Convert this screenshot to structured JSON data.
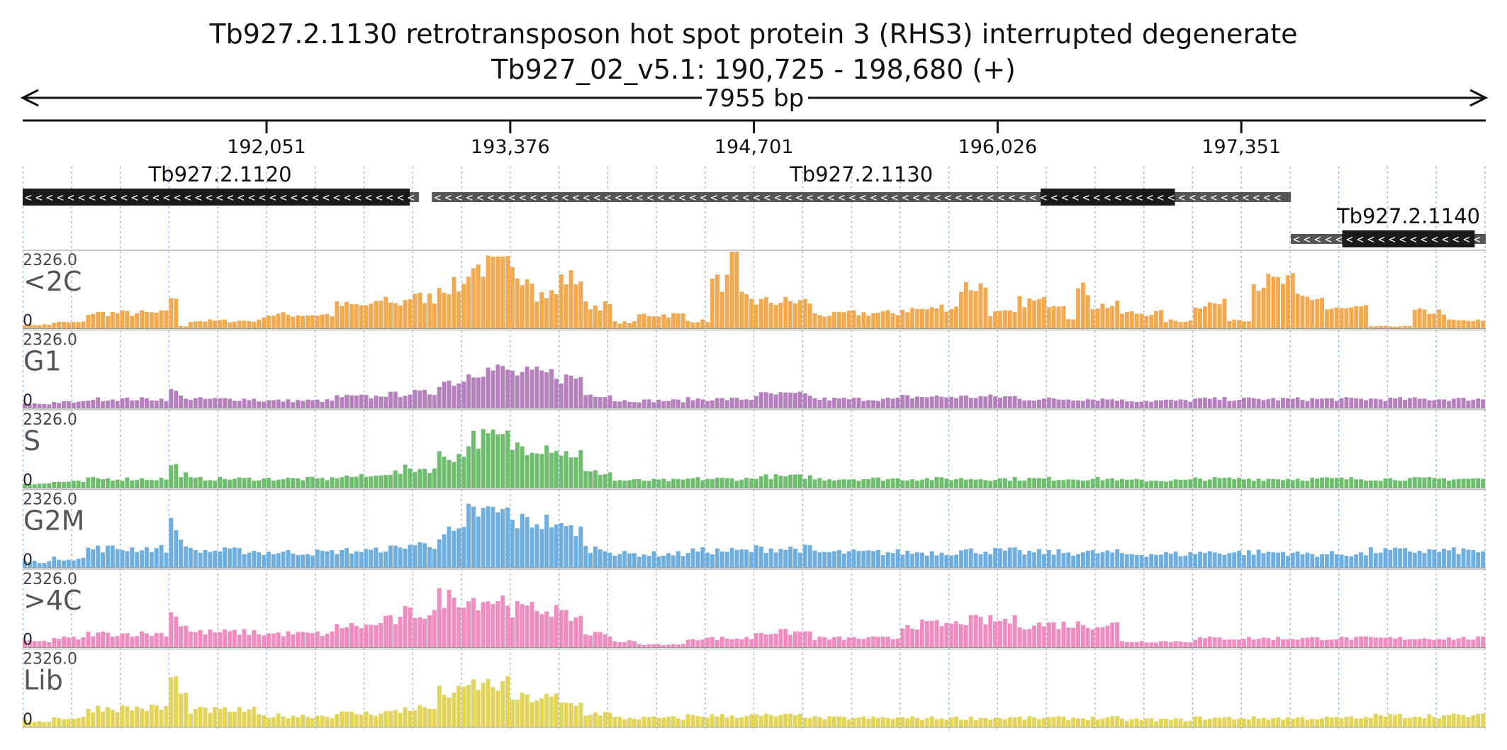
{
  "header": {
    "title": "Tb927.2.1130  retrotransposon hot spot protein 3 (RHS3)  interrupted  degenerate",
    "subtitle": "Tb927_02_v5.1: 190,725 - 198,680 (+)"
  },
  "chart_data": {
    "type": "genome-browser-coverage",
    "chromosome": "Tb927_02_v5.1",
    "region": {
      "start": 190725,
      "end": 198680,
      "strand": "+"
    },
    "length_label": "7955 bp",
    "ticks": [
      {
        "pos": 192051,
        "label": "192,051"
      },
      {
        "pos": 193376,
        "label": "193,376"
      },
      {
        "pos": 194701,
        "label": "194,701"
      },
      {
        "pos": 196026,
        "label": "196,026"
      },
      {
        "pos": 197351,
        "label": "197,351"
      }
    ],
    "genes": [
      {
        "name": "Tb927.2.1120",
        "strand": "-",
        "start": 190725,
        "end": 192880,
        "cds": [
          [
            190725,
            192830
          ]
        ],
        "row": 0
      },
      {
        "name": "Tb927.2.1130",
        "strand": "-",
        "start": 192950,
        "end": 197620,
        "cds": [
          [
            196260,
            196990
          ]
        ],
        "row": 0
      },
      {
        "name": "Tb927.2.1140",
        "strand": "-",
        "start": 197620,
        "end": 198680,
        "cds": [
          [
            197900,
            198620
          ]
        ],
        "row": 1
      }
    ],
    "y_max": 2326.0,
    "y_max_label": "2326.0",
    "y_min_label": "0",
    "bin_count": 300,
    "tracks": [
      {
        "name": "<2C",
        "color": "#f5a94e",
        "regions": [
          {
            "s": 0.0,
            "e": 0.02,
            "h": 0.05
          },
          {
            "s": 0.02,
            "e": 0.045,
            "h": 0.08
          },
          {
            "s": 0.045,
            "e": 0.1,
            "h": 0.2
          },
          {
            "s": 0.1,
            "e": 0.108,
            "h": 0.42
          },
          {
            "s": 0.108,
            "e": 0.112,
            "h": 0.03
          },
          {
            "s": 0.112,
            "e": 0.115,
            "h": 0.4
          },
          {
            "s": 0.115,
            "e": 0.16,
            "h": 0.1
          },
          {
            "s": 0.16,
            "e": 0.165,
            "h": 0.1
          },
          {
            "s": 0.165,
            "e": 0.215,
            "h": 0.18
          },
          {
            "s": 0.215,
            "e": 0.245,
            "h": 0.3
          },
          {
            "s": 0.245,
            "e": 0.252,
            "h": 0.38
          },
          {
            "s": 0.252,
            "e": 0.26,
            "h": 0.32
          },
          {
            "s": 0.26,
            "e": 0.282,
            "h": 0.4
          },
          {
            "s": 0.282,
            "e": 0.305,
            "h": 0.55
          },
          {
            "s": 0.305,
            "e": 0.335,
            "h": 0.8
          },
          {
            "s": 0.335,
            "e": 0.35,
            "h": 0.72
          },
          {
            "s": 0.35,
            "e": 0.368,
            "h": 0.45
          },
          {
            "s": 0.368,
            "e": 0.385,
            "h": 0.65
          },
          {
            "s": 0.385,
            "e": 0.405,
            "h": 0.3
          },
          {
            "s": 0.405,
            "e": 0.42,
            "h": 0.08
          },
          {
            "s": 0.42,
            "e": 0.455,
            "h": 0.18
          },
          {
            "s": 0.455,
            "e": 0.47,
            "h": 0.1
          },
          {
            "s": 0.47,
            "e": 0.485,
            "h": 0.6
          },
          {
            "s": 0.485,
            "e": 0.489,
            "h": 1.0
          },
          {
            "s": 0.489,
            "e": 0.5,
            "h": 0.4
          },
          {
            "s": 0.5,
            "e": 0.54,
            "h": 0.35
          },
          {
            "s": 0.54,
            "e": 0.56,
            "h": 0.18
          },
          {
            "s": 0.56,
            "e": 0.6,
            "h": 0.2
          },
          {
            "s": 0.6,
            "e": 0.625,
            "h": 0.25
          },
          {
            "s": 0.625,
            "e": 0.64,
            "h": 0.28
          },
          {
            "s": 0.64,
            "e": 0.66,
            "h": 0.55
          },
          {
            "s": 0.66,
            "e": 0.68,
            "h": 0.2
          },
          {
            "s": 0.68,
            "e": 0.715,
            "h": 0.35
          },
          {
            "s": 0.715,
            "e": 0.72,
            "h": 0.15
          },
          {
            "s": 0.72,
            "e": 0.73,
            "h": 0.5
          },
          {
            "s": 0.73,
            "e": 0.75,
            "h": 0.3
          },
          {
            "s": 0.75,
            "e": 0.78,
            "h": 0.2
          },
          {
            "s": 0.78,
            "e": 0.8,
            "h": 0.1
          },
          {
            "s": 0.8,
            "e": 0.825,
            "h": 0.32
          },
          {
            "s": 0.825,
            "e": 0.84,
            "h": 0.12
          },
          {
            "s": 0.84,
            "e": 0.87,
            "h": 0.6
          },
          {
            "s": 0.87,
            "e": 0.89,
            "h": 0.4
          },
          {
            "s": 0.89,
            "e": 0.92,
            "h": 0.25
          },
          {
            "s": 0.92,
            "e": 0.95,
            "h": 0.03
          },
          {
            "s": 0.95,
            "e": 0.975,
            "h": 0.22
          },
          {
            "s": 0.975,
            "e": 1.0,
            "h": 0.1
          }
        ]
      },
      {
        "name": "G1",
        "color": "#b67fbe",
        "regions": [
          {
            "s": 0.0,
            "e": 0.02,
            "h": 0.06
          },
          {
            "s": 0.02,
            "e": 0.045,
            "h": 0.08
          },
          {
            "s": 0.045,
            "e": 0.1,
            "h": 0.12
          },
          {
            "s": 0.1,
            "e": 0.108,
            "h": 0.22
          },
          {
            "s": 0.108,
            "e": 0.115,
            "h": 0.15
          },
          {
            "s": 0.115,
            "e": 0.16,
            "h": 0.12
          },
          {
            "s": 0.16,
            "e": 0.215,
            "h": 0.1
          },
          {
            "s": 0.215,
            "e": 0.245,
            "h": 0.15
          },
          {
            "s": 0.245,
            "e": 0.26,
            "h": 0.18
          },
          {
            "s": 0.26,
            "e": 0.282,
            "h": 0.2
          },
          {
            "s": 0.282,
            "e": 0.305,
            "h": 0.35
          },
          {
            "s": 0.305,
            "e": 0.335,
            "h": 0.5
          },
          {
            "s": 0.335,
            "e": 0.368,
            "h": 0.45
          },
          {
            "s": 0.368,
            "e": 0.385,
            "h": 0.4
          },
          {
            "s": 0.385,
            "e": 0.405,
            "h": 0.18
          },
          {
            "s": 0.405,
            "e": 0.455,
            "h": 0.1
          },
          {
            "s": 0.455,
            "e": 0.5,
            "h": 0.12
          },
          {
            "s": 0.5,
            "e": 0.54,
            "h": 0.18
          },
          {
            "s": 0.54,
            "e": 0.6,
            "h": 0.12
          },
          {
            "s": 0.6,
            "e": 0.64,
            "h": 0.15
          },
          {
            "s": 0.64,
            "e": 0.68,
            "h": 0.15
          },
          {
            "s": 0.68,
            "e": 0.75,
            "h": 0.12
          },
          {
            "s": 0.75,
            "e": 0.8,
            "h": 0.1
          },
          {
            "s": 0.8,
            "e": 0.87,
            "h": 0.12
          },
          {
            "s": 0.87,
            "e": 0.92,
            "h": 0.12
          },
          {
            "s": 0.92,
            "e": 1.0,
            "h": 0.12
          }
        ]
      },
      {
        "name": "S",
        "color": "#6dbf6d",
        "regions": [
          {
            "s": 0.0,
            "e": 0.02,
            "h": 0.06
          },
          {
            "s": 0.02,
            "e": 0.045,
            "h": 0.08
          },
          {
            "s": 0.045,
            "e": 0.1,
            "h": 0.12
          },
          {
            "s": 0.1,
            "e": 0.108,
            "h": 0.28
          },
          {
            "s": 0.108,
            "e": 0.115,
            "h": 0.18
          },
          {
            "s": 0.115,
            "e": 0.16,
            "h": 0.12
          },
          {
            "s": 0.16,
            "e": 0.215,
            "h": 0.12
          },
          {
            "s": 0.215,
            "e": 0.245,
            "h": 0.15
          },
          {
            "s": 0.245,
            "e": 0.26,
            "h": 0.2
          },
          {
            "s": 0.26,
            "e": 0.282,
            "h": 0.25
          },
          {
            "s": 0.282,
            "e": 0.305,
            "h": 0.42
          },
          {
            "s": 0.305,
            "e": 0.335,
            "h": 0.65
          },
          {
            "s": 0.335,
            "e": 0.368,
            "h": 0.55
          },
          {
            "s": 0.368,
            "e": 0.385,
            "h": 0.45
          },
          {
            "s": 0.385,
            "e": 0.405,
            "h": 0.2
          },
          {
            "s": 0.405,
            "e": 0.455,
            "h": 0.1
          },
          {
            "s": 0.455,
            "e": 0.5,
            "h": 0.12
          },
          {
            "s": 0.5,
            "e": 0.54,
            "h": 0.15
          },
          {
            "s": 0.54,
            "e": 0.6,
            "h": 0.12
          },
          {
            "s": 0.6,
            "e": 0.64,
            "h": 0.12
          },
          {
            "s": 0.64,
            "e": 0.68,
            "h": 0.12
          },
          {
            "s": 0.68,
            "e": 0.75,
            "h": 0.12
          },
          {
            "s": 0.75,
            "e": 0.8,
            "h": 0.1
          },
          {
            "s": 0.8,
            "e": 0.87,
            "h": 0.12
          },
          {
            "s": 0.87,
            "e": 0.92,
            "h": 0.12
          },
          {
            "s": 0.92,
            "e": 1.0,
            "h": 0.12
          }
        ]
      },
      {
        "name": "G2M",
        "color": "#6eaee0",
        "regions": [
          {
            "s": 0.0,
            "e": 0.02,
            "h": 0.08
          },
          {
            "s": 0.02,
            "e": 0.045,
            "h": 0.12
          },
          {
            "s": 0.045,
            "e": 0.1,
            "h": 0.25
          },
          {
            "s": 0.1,
            "e": 0.108,
            "h": 0.55
          },
          {
            "s": 0.108,
            "e": 0.115,
            "h": 0.35
          },
          {
            "s": 0.115,
            "e": 0.16,
            "h": 0.22
          },
          {
            "s": 0.16,
            "e": 0.215,
            "h": 0.2
          },
          {
            "s": 0.215,
            "e": 0.245,
            "h": 0.22
          },
          {
            "s": 0.245,
            "e": 0.26,
            "h": 0.25
          },
          {
            "s": 0.26,
            "e": 0.282,
            "h": 0.3
          },
          {
            "s": 0.282,
            "e": 0.305,
            "h": 0.45
          },
          {
            "s": 0.305,
            "e": 0.335,
            "h": 0.72
          },
          {
            "s": 0.335,
            "e": 0.368,
            "h": 0.6
          },
          {
            "s": 0.368,
            "e": 0.385,
            "h": 0.5
          },
          {
            "s": 0.385,
            "e": 0.405,
            "h": 0.25
          },
          {
            "s": 0.405,
            "e": 0.455,
            "h": 0.18
          },
          {
            "s": 0.455,
            "e": 0.5,
            "h": 0.22
          },
          {
            "s": 0.5,
            "e": 0.54,
            "h": 0.25
          },
          {
            "s": 0.54,
            "e": 0.6,
            "h": 0.2
          },
          {
            "s": 0.6,
            "e": 0.64,
            "h": 0.2
          },
          {
            "s": 0.64,
            "e": 0.68,
            "h": 0.22
          },
          {
            "s": 0.68,
            "e": 0.75,
            "h": 0.2
          },
          {
            "s": 0.75,
            "e": 0.8,
            "h": 0.18
          },
          {
            "s": 0.8,
            "e": 0.87,
            "h": 0.2
          },
          {
            "s": 0.87,
            "e": 0.92,
            "h": 0.18
          },
          {
            "s": 0.92,
            "e": 1.0,
            "h": 0.22
          }
        ]
      },
      {
        "name": ">4C",
        "color": "#f08cbf",
        "regions": [
          {
            "s": 0.0,
            "e": 0.02,
            "h": 0.08
          },
          {
            "s": 0.02,
            "e": 0.045,
            "h": 0.12
          },
          {
            "s": 0.045,
            "e": 0.1,
            "h": 0.18
          },
          {
            "s": 0.1,
            "e": 0.108,
            "h": 0.45
          },
          {
            "s": 0.108,
            "e": 0.115,
            "h": 0.3
          },
          {
            "s": 0.115,
            "e": 0.16,
            "h": 0.2
          },
          {
            "s": 0.16,
            "e": 0.215,
            "h": 0.18
          },
          {
            "s": 0.215,
            "e": 0.245,
            "h": 0.28
          },
          {
            "s": 0.245,
            "e": 0.26,
            "h": 0.35
          },
          {
            "s": 0.26,
            "e": 0.282,
            "h": 0.45
          },
          {
            "s": 0.282,
            "e": 0.305,
            "h": 0.65
          },
          {
            "s": 0.305,
            "e": 0.335,
            "h": 0.62
          },
          {
            "s": 0.335,
            "e": 0.368,
            "h": 0.5
          },
          {
            "s": 0.368,
            "e": 0.385,
            "h": 0.4
          },
          {
            "s": 0.385,
            "e": 0.405,
            "h": 0.18
          },
          {
            "s": 0.405,
            "e": 0.42,
            "h": 0.08
          },
          {
            "s": 0.42,
            "e": 0.455,
            "h": 0.04
          },
          {
            "s": 0.455,
            "e": 0.5,
            "h": 0.12
          },
          {
            "s": 0.5,
            "e": 0.54,
            "h": 0.2
          },
          {
            "s": 0.54,
            "e": 0.6,
            "h": 0.12
          },
          {
            "s": 0.6,
            "e": 0.64,
            "h": 0.3
          },
          {
            "s": 0.64,
            "e": 0.68,
            "h": 0.35
          },
          {
            "s": 0.68,
            "e": 0.75,
            "h": 0.3
          },
          {
            "s": 0.75,
            "e": 0.8,
            "h": 0.08
          },
          {
            "s": 0.8,
            "e": 0.87,
            "h": 0.12
          },
          {
            "s": 0.87,
            "e": 0.92,
            "h": 0.12
          },
          {
            "s": 0.92,
            "e": 1.0,
            "h": 0.12
          }
        ]
      },
      {
        "name": "Lib",
        "color": "#e2d55a",
        "regions": [
          {
            "s": 0.0,
            "e": 0.02,
            "h": 0.08
          },
          {
            "s": 0.02,
            "e": 0.045,
            "h": 0.12
          },
          {
            "s": 0.045,
            "e": 0.1,
            "h": 0.25
          },
          {
            "s": 0.1,
            "e": 0.108,
            "h": 0.65
          },
          {
            "s": 0.108,
            "e": 0.115,
            "h": 0.4
          },
          {
            "s": 0.115,
            "e": 0.16,
            "h": 0.22
          },
          {
            "s": 0.16,
            "e": 0.215,
            "h": 0.15
          },
          {
            "s": 0.215,
            "e": 0.245,
            "h": 0.18
          },
          {
            "s": 0.245,
            "e": 0.26,
            "h": 0.2
          },
          {
            "s": 0.26,
            "e": 0.282,
            "h": 0.25
          },
          {
            "s": 0.282,
            "e": 0.305,
            "h": 0.45
          },
          {
            "s": 0.305,
            "e": 0.335,
            "h": 0.55
          },
          {
            "s": 0.335,
            "e": 0.368,
            "h": 0.38
          },
          {
            "s": 0.368,
            "e": 0.385,
            "h": 0.3
          },
          {
            "s": 0.385,
            "e": 0.405,
            "h": 0.18
          },
          {
            "s": 0.405,
            "e": 0.455,
            "h": 0.12
          },
          {
            "s": 0.455,
            "e": 0.5,
            "h": 0.15
          },
          {
            "s": 0.5,
            "e": 0.54,
            "h": 0.15
          },
          {
            "s": 0.54,
            "e": 0.6,
            "h": 0.12
          },
          {
            "s": 0.6,
            "e": 0.64,
            "h": 0.12
          },
          {
            "s": 0.64,
            "e": 0.68,
            "h": 0.12
          },
          {
            "s": 0.68,
            "e": 0.75,
            "h": 0.12
          },
          {
            "s": 0.75,
            "e": 0.8,
            "h": 0.1
          },
          {
            "s": 0.8,
            "e": 0.87,
            "h": 0.12
          },
          {
            "s": 0.87,
            "e": 0.92,
            "h": 0.12
          },
          {
            "s": 0.92,
            "e": 1.0,
            "h": 0.15
          }
        ]
      }
    ]
  }
}
